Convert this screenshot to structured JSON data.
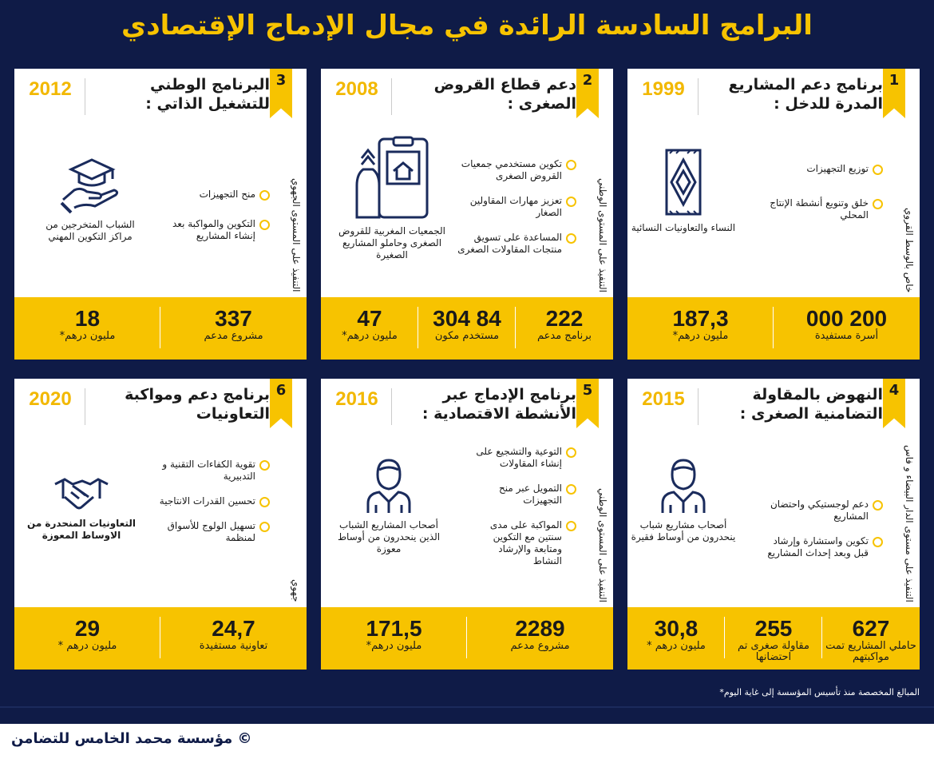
{
  "title": "البرامج السادسة الرائدة في مجال الإدماج الإقتصادي",
  "programs": [
    {
      "number": "1",
      "year": "1999",
      "title": "برنامج دعم المشاريع المدرة للدخل :",
      "side_text": "خاص بالوسط القروي",
      "bullets": [
        "توزيع التجهيزات",
        "خلق وتنويع أنشطة الإنتاج المحلي"
      ],
      "target_icon": "carpet-icon",
      "target": "النساء والتعاونيات النسائية",
      "stats": [
        {
          "value": "200 000",
          "label": "أسرة مستفيدة"
        },
        {
          "value": "187,3",
          "label": "مليون درهم*"
        }
      ]
    },
    {
      "number": "2",
      "year": "2008",
      "title": "دعم قطاع القروض الصغرى :",
      "side_text": "التنفيذ على المستوى الوطني",
      "bullets": [
        "تكوين مستخدمي جمعيات القروض الصغرى",
        "تعزيز مهارات المقاولين الصغار",
        "المساعدة على تسويق منتجات المقاولات الصغرى"
      ],
      "target_icon": "shop-bag-icon",
      "target": "الجمعيات المغربية للقروض الصغرى وحاملو المشاريع الصغيرة",
      "stats": [
        {
          "value": "222",
          "label": "برنامج مدعم"
        },
        {
          "value": "84 304",
          "label": "مستخدم مكون"
        },
        {
          "value": "47",
          "label": "مليون درهم*"
        }
      ]
    },
    {
      "number": "3",
      "year": "2012",
      "title": "البرنامج الوطني للتشغيل الذاتي :",
      "side_text": "التنفيذ على المستوى الجهوي",
      "bullets": [
        "منح التجهيزات",
        "التكوين والمواكبة بعد إنشاء المشاريع"
      ],
      "target_icon": "graduate-hand-icon",
      "target": "الشباب المتخرجين من مراكز التكوين المهني",
      "stats": [
        {
          "value": "337",
          "label": "مشروع مدعم"
        },
        {
          "value": "18",
          "label": "مليون درهم*"
        }
      ]
    },
    {
      "number": "4",
      "year": "2015",
      "title": "النهوض بالمقاولة التضامنية الصغرى :",
      "side_text": "التنفيذ على مستوى الدار البيضاء و فاس",
      "bullets": [
        "دعم لوجستيكي واحتضان المشاريع",
        "تكوين واستشارة وإرشاد قبل وبعد إحداث المشاريع"
      ],
      "target_icon": "person-icon",
      "target": "أصحاب مشاريع شباب ينحدرون من أوساط فقيرة",
      "stats": [
        {
          "value": "627",
          "label": "حاملي المشاريع تمت مواكبتهم"
        },
        {
          "value": "255",
          "label": "مقاولة صغرى تم احتضانها"
        },
        {
          "value": "30,8",
          "label": "مليون درهم *"
        }
      ]
    },
    {
      "number": "5",
      "year": "2016",
      "title": "برنامج الإدماج عبر الأنشطة الاقتصادية :",
      "side_text": "التنفيذ على المستوى الوطني",
      "bullets": [
        "التوعية والتشجيع على إنشاء المقاولات",
        "التمويل عبر منح التجهيزات",
        "المواكبة على مدى سنتين مع التكوين ومتابعة والإرشاد النشاط"
      ],
      "target_icon": "person-icon",
      "target": "أصحاب المشاريع الشباب الذين ينحدرون من أوساط معوزة",
      "stats": [
        {
          "value": "2289",
          "label": "مشروع مدعم"
        },
        {
          "value": "171,5",
          "label": "مليون درهم*"
        }
      ]
    },
    {
      "number": "6",
      "year": "2020",
      "title": "برنامج دعم ومواكبة التعاونيات",
      "side_text": "جهوي",
      "bullets": [
        "تقوية الكفاءات التقنية و التدبيرية",
        "تحسين القدرات الانتاجية",
        "تسهيل الولوج للأسواق لمنظمة"
      ],
      "target_icon": "handshake-icon",
      "target": "التعاونيات المنحدرة من الاوساط المعوزة",
      "stats": [
        {
          "value": "24,7",
          "label": "تعاونية مستفيدة"
        },
        {
          "value": "29",
          "label": "مليون درهم *"
        }
      ]
    }
  ],
  "footnote": "المبالغ المخصصة منذ تأسيس المؤسسة إلى غاية اليوم*",
  "copyright": "© مؤسسة محمد الخامس للتضامن",
  "colors": {
    "background": "#0f1b47",
    "accent": "#f7c300",
    "card": "#ffffff"
  }
}
